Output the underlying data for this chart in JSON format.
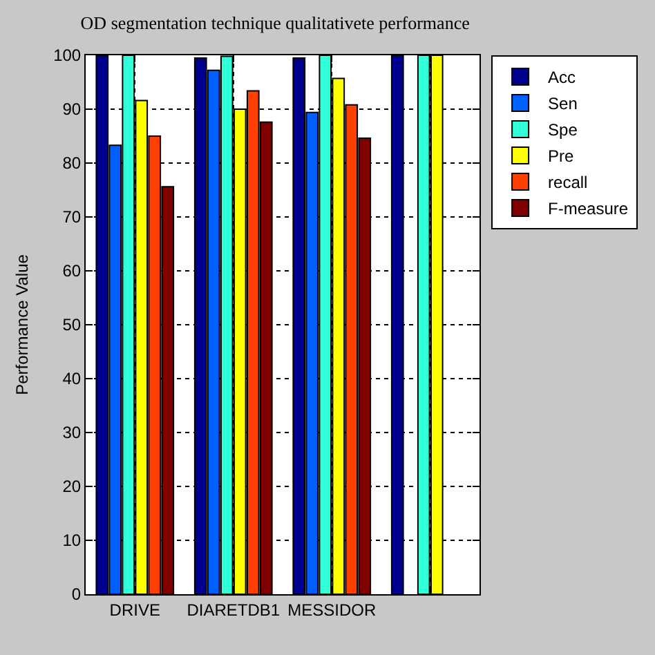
{
  "chart_data": {
    "type": "bar",
    "title": "OD segmentation technique qualitativete performance",
    "ylabel": "Performance Value",
    "categories": [
      "DRIVE",
      "DIARETDB1",
      "MESSIDOR",
      null
    ],
    "series": [
      {
        "name": "Acc",
        "color": "#00008f",
        "values": [
          100,
          99.5,
          99.5,
          100
        ]
      },
      {
        "name": "Sen",
        "color": "#0060ff",
        "values": [
          83.3,
          97.2,
          89.4,
          null
        ]
      },
      {
        "name": "Spe",
        "color": "#30ffd8",
        "values": [
          100,
          99.8,
          100,
          100
        ]
      },
      {
        "name": "Pre",
        "color": "#ffff00",
        "values": [
          91.6,
          90.0,
          95.7,
          100
        ]
      },
      {
        "name": "recall",
        "color": "#ff4000",
        "values": [
          85.0,
          93.4,
          90.8,
          null
        ]
      },
      {
        "name": "F-measure",
        "color": "#800000",
        "values": [
          75.6,
          87.6,
          84.6,
          null
        ]
      }
    ],
    "ylim": [
      0,
      100
    ],
    "yticks": [
      0,
      10,
      20,
      30,
      40,
      50,
      60,
      70,
      80,
      90,
      100
    ],
    "grid": true,
    "legend": "top right"
  }
}
